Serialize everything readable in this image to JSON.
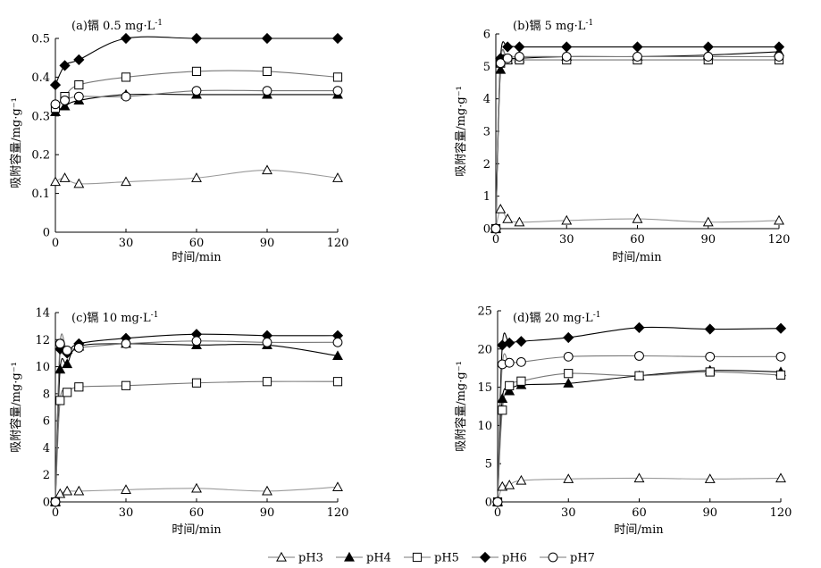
{
  "chart_data": [
    {
      "type": "line",
      "title_prefix": "(a)镉 0.5 mg·L",
      "title_sup": "-1",
      "xlabel": "时间/min",
      "ylabel": "吸附容量/mg·g⁻¹",
      "xlim": [
        0,
        120
      ],
      "ylim": [
        0,
        0.5
      ],
      "xticks": [
        0,
        30,
        60,
        90,
        120
      ],
      "yticks": [
        0,
        0.1,
        0.2,
        0.3,
        0.4,
        0.5
      ],
      "ytick_labels": [
        "0",
        "0.1",
        "0.2",
        "0.3",
        "0.4",
        "0.5"
      ],
      "grid": false,
      "series": [
        {
          "name": "pH3",
          "x": [
            0,
            4,
            10,
            30,
            60,
            90,
            120
          ],
          "y": [
            0.13,
            0.14,
            0.125,
            0.13,
            0.14,
            0.16,
            0.14
          ]
        },
        {
          "name": "pH4",
          "x": [
            0,
            4,
            10,
            30,
            60,
            90,
            120
          ],
          "y": [
            0.31,
            0.325,
            0.34,
            0.355,
            0.355,
            0.355,
            0.355
          ]
        },
        {
          "name": "pH5",
          "x": [
            0,
            4,
            10,
            30,
            60,
            90,
            120
          ],
          "y": [
            0.32,
            0.35,
            0.38,
            0.4,
            0.415,
            0.415,
            0.4
          ]
        },
        {
          "name": "pH6",
          "x": [
            0,
            4,
            10,
            30,
            60,
            90,
            120
          ],
          "y": [
            0.38,
            0.43,
            0.445,
            0.5,
            0.5,
            0.5,
            0.5
          ]
        },
        {
          "name": "pH7",
          "x": [
            0,
            4,
            10,
            30,
            60,
            90,
            120
          ],
          "y": [
            0.33,
            0.34,
            0.35,
            0.35,
            0.365,
            0.365,
            0.365
          ]
        }
      ]
    },
    {
      "type": "line",
      "title_prefix": "(b)镉 5 mg·L",
      "title_sup": "-1",
      "xlabel": "时间/min",
      "ylabel": "吸附容量/mg·g⁻¹",
      "xlim": [
        0,
        120
      ],
      "ylim": [
        0,
        6
      ],
      "xticks": [
        0,
        30,
        60,
        90,
        120
      ],
      "yticks": [
        0,
        1,
        2,
        3,
        4,
        5,
        6
      ],
      "ytick_labels": [
        "0",
        "1",
        "2",
        "3",
        "4",
        "5",
        "6"
      ],
      "grid": false,
      "series": [
        {
          "name": "pH3",
          "x": [
            0,
            2,
            5,
            10,
            30,
            60,
            90,
            120
          ],
          "y": [
            0,
            0.6,
            0.3,
            0.2,
            0.25,
            0.3,
            0.2,
            0.25
          ]
        },
        {
          "name": "pH4",
          "x": [
            0,
            2,
            5,
            10,
            30,
            60,
            90,
            120
          ],
          "y": [
            0,
            4.9,
            5.2,
            5.25,
            5.3,
            5.3,
            5.35,
            5.45
          ]
        },
        {
          "name": "pH5",
          "x": [
            0,
            2,
            5,
            10,
            30,
            60,
            90,
            120
          ],
          "y": [
            0,
            5.1,
            5.2,
            5.2,
            5.2,
            5.2,
            5.2,
            5.2
          ]
        },
        {
          "name": "pH6",
          "x": [
            0,
            2,
            5,
            10,
            30,
            60,
            90,
            120
          ],
          "y": [
            0,
            5.25,
            5.6,
            5.6,
            5.6,
            5.6,
            5.6,
            5.6
          ]
        },
        {
          "name": "pH7",
          "x": [
            0,
            2,
            5,
            10,
            30,
            60,
            90,
            120
          ],
          "y": [
            0,
            5.1,
            5.25,
            5.3,
            5.3,
            5.3,
            5.3,
            5.3
          ]
        }
      ]
    },
    {
      "type": "line",
      "title_prefix": "(c)镉 10 mg·L",
      "title_sup": "-1",
      "xlabel": "时间/min",
      "ylabel": "吸附容量/mg·g⁻¹",
      "xlim": [
        0,
        120
      ],
      "ylim": [
        0,
        14
      ],
      "xticks": [
        0,
        30,
        60,
        90,
        120
      ],
      "yticks": [
        0,
        2,
        4,
        6,
        8,
        10,
        12,
        14
      ],
      "ytick_labels": [
        "0",
        "2",
        "4",
        "6",
        "8",
        "10",
        "12",
        "14"
      ],
      "grid": false,
      "series": [
        {
          "name": "pH3",
          "x": [
            0,
            2,
            5,
            10,
            30,
            60,
            90,
            120
          ],
          "y": [
            0,
            0.6,
            0.8,
            0.8,
            0.9,
            1.0,
            0.8,
            1.1
          ]
        },
        {
          "name": "pH4",
          "x": [
            0,
            2,
            5,
            10,
            30,
            60,
            90,
            120
          ],
          "y": [
            0,
            9.8,
            10.2,
            11.5,
            11.7,
            11.6,
            11.6,
            10.8
          ]
        },
        {
          "name": "pH5",
          "x": [
            0,
            2,
            5,
            10,
            30,
            60,
            90,
            120
          ],
          "y": [
            0,
            7.5,
            8.1,
            8.5,
            8.6,
            8.8,
            8.9,
            8.9
          ]
        },
        {
          "name": "pH6",
          "x": [
            0,
            2,
            5,
            10,
            30,
            60,
            90,
            120
          ],
          "y": [
            0,
            11.3,
            11.0,
            11.7,
            12.1,
            12.4,
            12.3,
            12.3
          ]
        },
        {
          "name": "pH7",
          "x": [
            0,
            2,
            5,
            10,
            30,
            60,
            90,
            120
          ],
          "y": [
            0,
            11.7,
            11.2,
            11.4,
            11.7,
            11.9,
            11.8,
            11.8
          ]
        }
      ]
    },
    {
      "type": "line",
      "title_prefix": "(d)镉 20 mg·L",
      "title_sup": "-1",
      "xlabel": "时间/min",
      "ylabel": "吸附容量/mg·g⁻¹",
      "xlim": [
        0,
        120
      ],
      "ylim": [
        0,
        25
      ],
      "xticks": [
        0,
        30,
        60,
        90,
        120
      ],
      "yticks": [
        0,
        5,
        10,
        15,
        20,
        25
      ],
      "ytick_labels": [
        "0",
        "5",
        "10",
        "15",
        "20",
        "25"
      ],
      "grid": false,
      "series": [
        {
          "name": "pH3",
          "x": [
            0,
            2,
            5,
            10,
            30,
            60,
            90,
            120
          ],
          "y": [
            0,
            2.0,
            2.2,
            2.8,
            3.0,
            3.1,
            3.0,
            3.1
          ]
        },
        {
          "name": "pH4",
          "x": [
            0,
            2,
            5,
            10,
            30,
            60,
            90,
            120
          ],
          "y": [
            0,
            13.5,
            14.5,
            15.3,
            15.5,
            16.5,
            17.2,
            17.0
          ]
        },
        {
          "name": "pH5",
          "x": [
            0,
            2,
            5,
            10,
            30,
            60,
            90,
            120
          ],
          "y": [
            0,
            12.0,
            15.2,
            15.8,
            16.8,
            16.5,
            17.0,
            16.6
          ]
        },
        {
          "name": "pH6",
          "x": [
            0,
            2,
            5,
            10,
            30,
            60,
            90,
            120
          ],
          "y": [
            0,
            20.5,
            20.8,
            21.0,
            21.5,
            22.8,
            22.6,
            22.7
          ]
        },
        {
          "name": "pH7",
          "x": [
            0,
            2,
            5,
            10,
            30,
            60,
            90,
            120
          ],
          "y": [
            0,
            18.0,
            18.2,
            18.3,
            19.0,
            19.1,
            19.0,
            19.0
          ]
        }
      ]
    }
  ],
  "legend": {
    "placement": "bottom-center",
    "items": [
      {
        "label": "pH3",
        "marker": "triangle-open"
      },
      {
        "label": "pH4",
        "marker": "triangle-filled"
      },
      {
        "label": "pH5",
        "marker": "square-open"
      },
      {
        "label": "pH6",
        "marker": "diamond-filled"
      },
      {
        "label": "pH7",
        "marker": "circle-open"
      }
    ]
  },
  "styles": {
    "pH3": {
      "marker": "triangle-open",
      "line": "#9a9a9a"
    },
    "pH4": {
      "marker": "triangle-filled",
      "line": "#000000"
    },
    "pH5": {
      "marker": "square-open",
      "line": "#777777"
    },
    "pH6": {
      "marker": "diamond-filled",
      "line": "#000000"
    },
    "pH7": {
      "marker": "circle-open",
      "line": "#777777"
    }
  }
}
